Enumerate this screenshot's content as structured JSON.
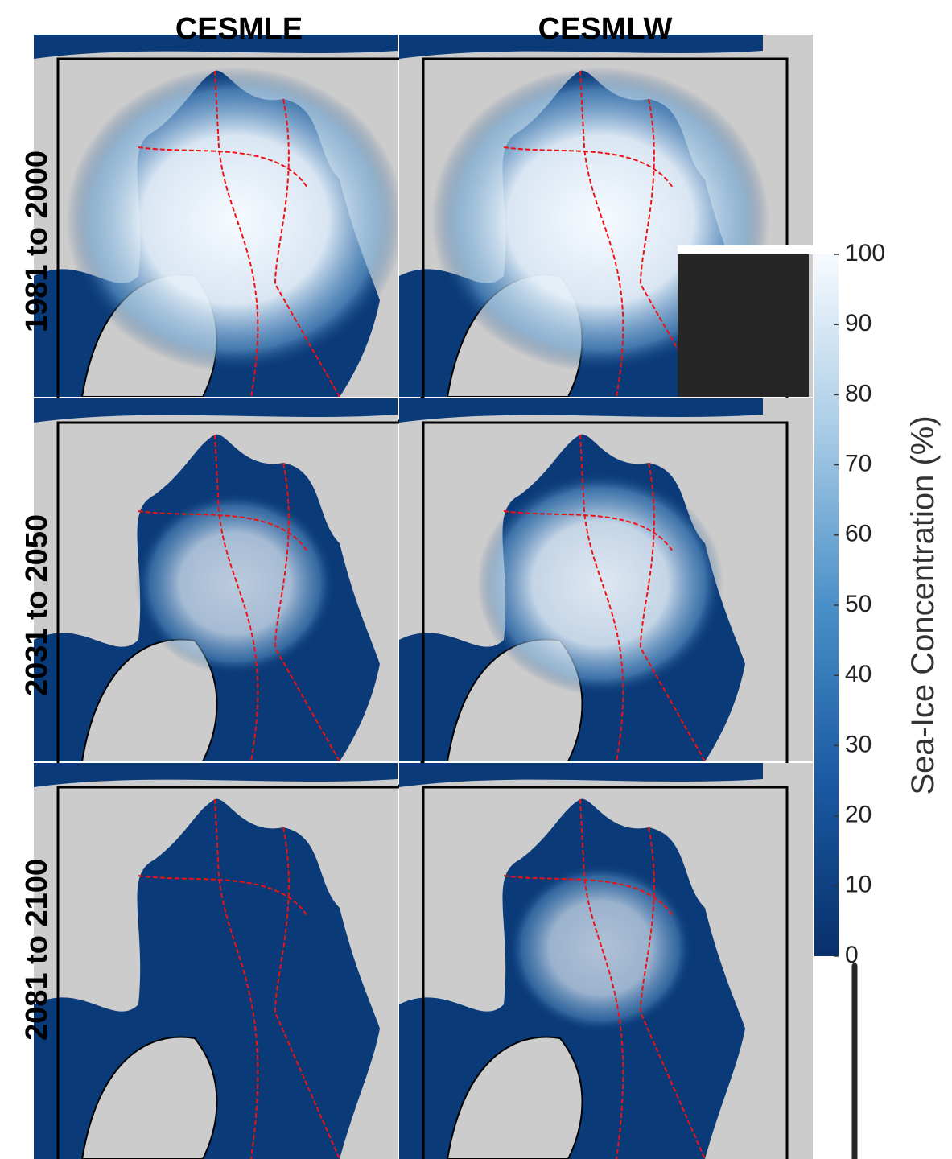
{
  "columns": [
    "CESMLE",
    "CESMLW"
  ],
  "rows": [
    "1981 to 2000",
    "2031 to 2050",
    "2081 to 2100"
  ],
  "colorbar": {
    "label": "Sea-Ice Concentration (%)",
    "lim": [
      0,
      100
    ],
    "ticks": [
      0,
      10,
      20,
      30,
      40,
      50,
      60,
      70,
      80,
      90,
      100
    ]
  }
}
